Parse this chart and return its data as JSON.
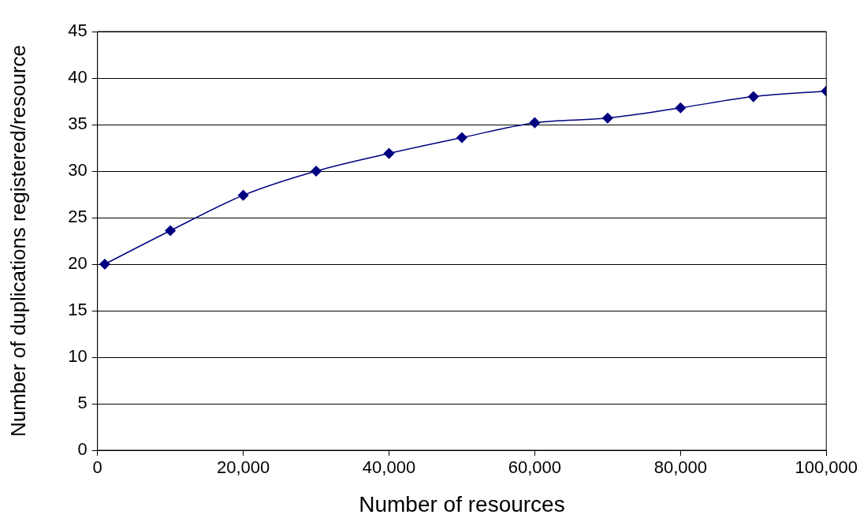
{
  "chart_data": {
    "type": "line",
    "xlabel": "Number of resources",
    "ylabel": "Number of duplications registered/resource",
    "x": [
      1000,
      10000,
      20000,
      30000,
      40000,
      50000,
      60000,
      70000,
      80000,
      90000,
      100000
    ],
    "series": [
      {
        "color": "#000080",
        "values": [
          20,
          23.6,
          27.4,
          30,
          31.9,
          33.6,
          35.2,
          35.7,
          36.8,
          38,
          38.6
        ]
      }
    ],
    "xlim": [
      0,
      100000
    ],
    "xticks": [
      0,
      {
        "value": 20000,
        "label": "20,000"
      },
      {
        "value": 40000,
        "label": "40,000"
      },
      {
        "value": 60000,
        "label": "60,000"
      },
      {
        "value": 80000,
        "label": "80,000"
      },
      {
        "value": 100000,
        "label": "100,000"
      }
    ],
    "ylim": [
      0,
      45
    ],
    "yticks": [
      0,
      5,
      10,
      15,
      20,
      25,
      30,
      35,
      40,
      45
    ],
    "grid": "y",
    "legend": false,
    "marker": "diamond",
    "line_style": "solid"
  }
}
